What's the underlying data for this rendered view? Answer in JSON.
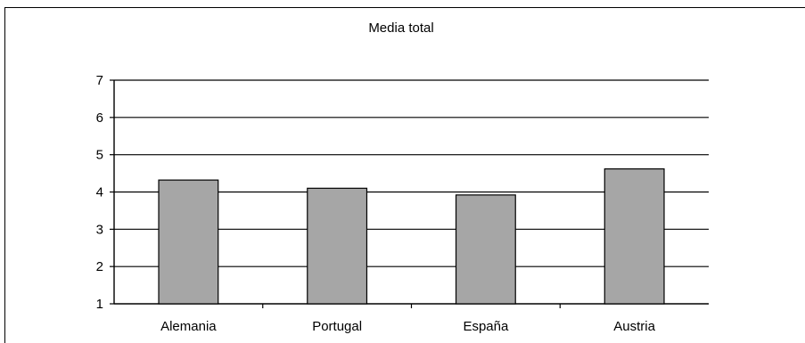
{
  "chart_data": {
    "type": "bar",
    "title": "Media total",
    "categories": [
      "Alemania",
      "Portugal",
      "España",
      "Austria"
    ],
    "values": [
      4.32,
      4.1,
      3.92,
      4.62
    ],
    "xlabel": "",
    "ylabel": "",
    "ylim": [
      1,
      7
    ],
    "yticks": [
      1,
      2,
      3,
      4,
      5,
      6,
      7
    ],
    "grid": true,
    "legend": "none",
    "colors": {
      "bar_fill": "#a6a6a6",
      "bar_stroke": "#000000",
      "grid": "#000000",
      "axis": "#000000",
      "background": "#ffffff"
    }
  }
}
